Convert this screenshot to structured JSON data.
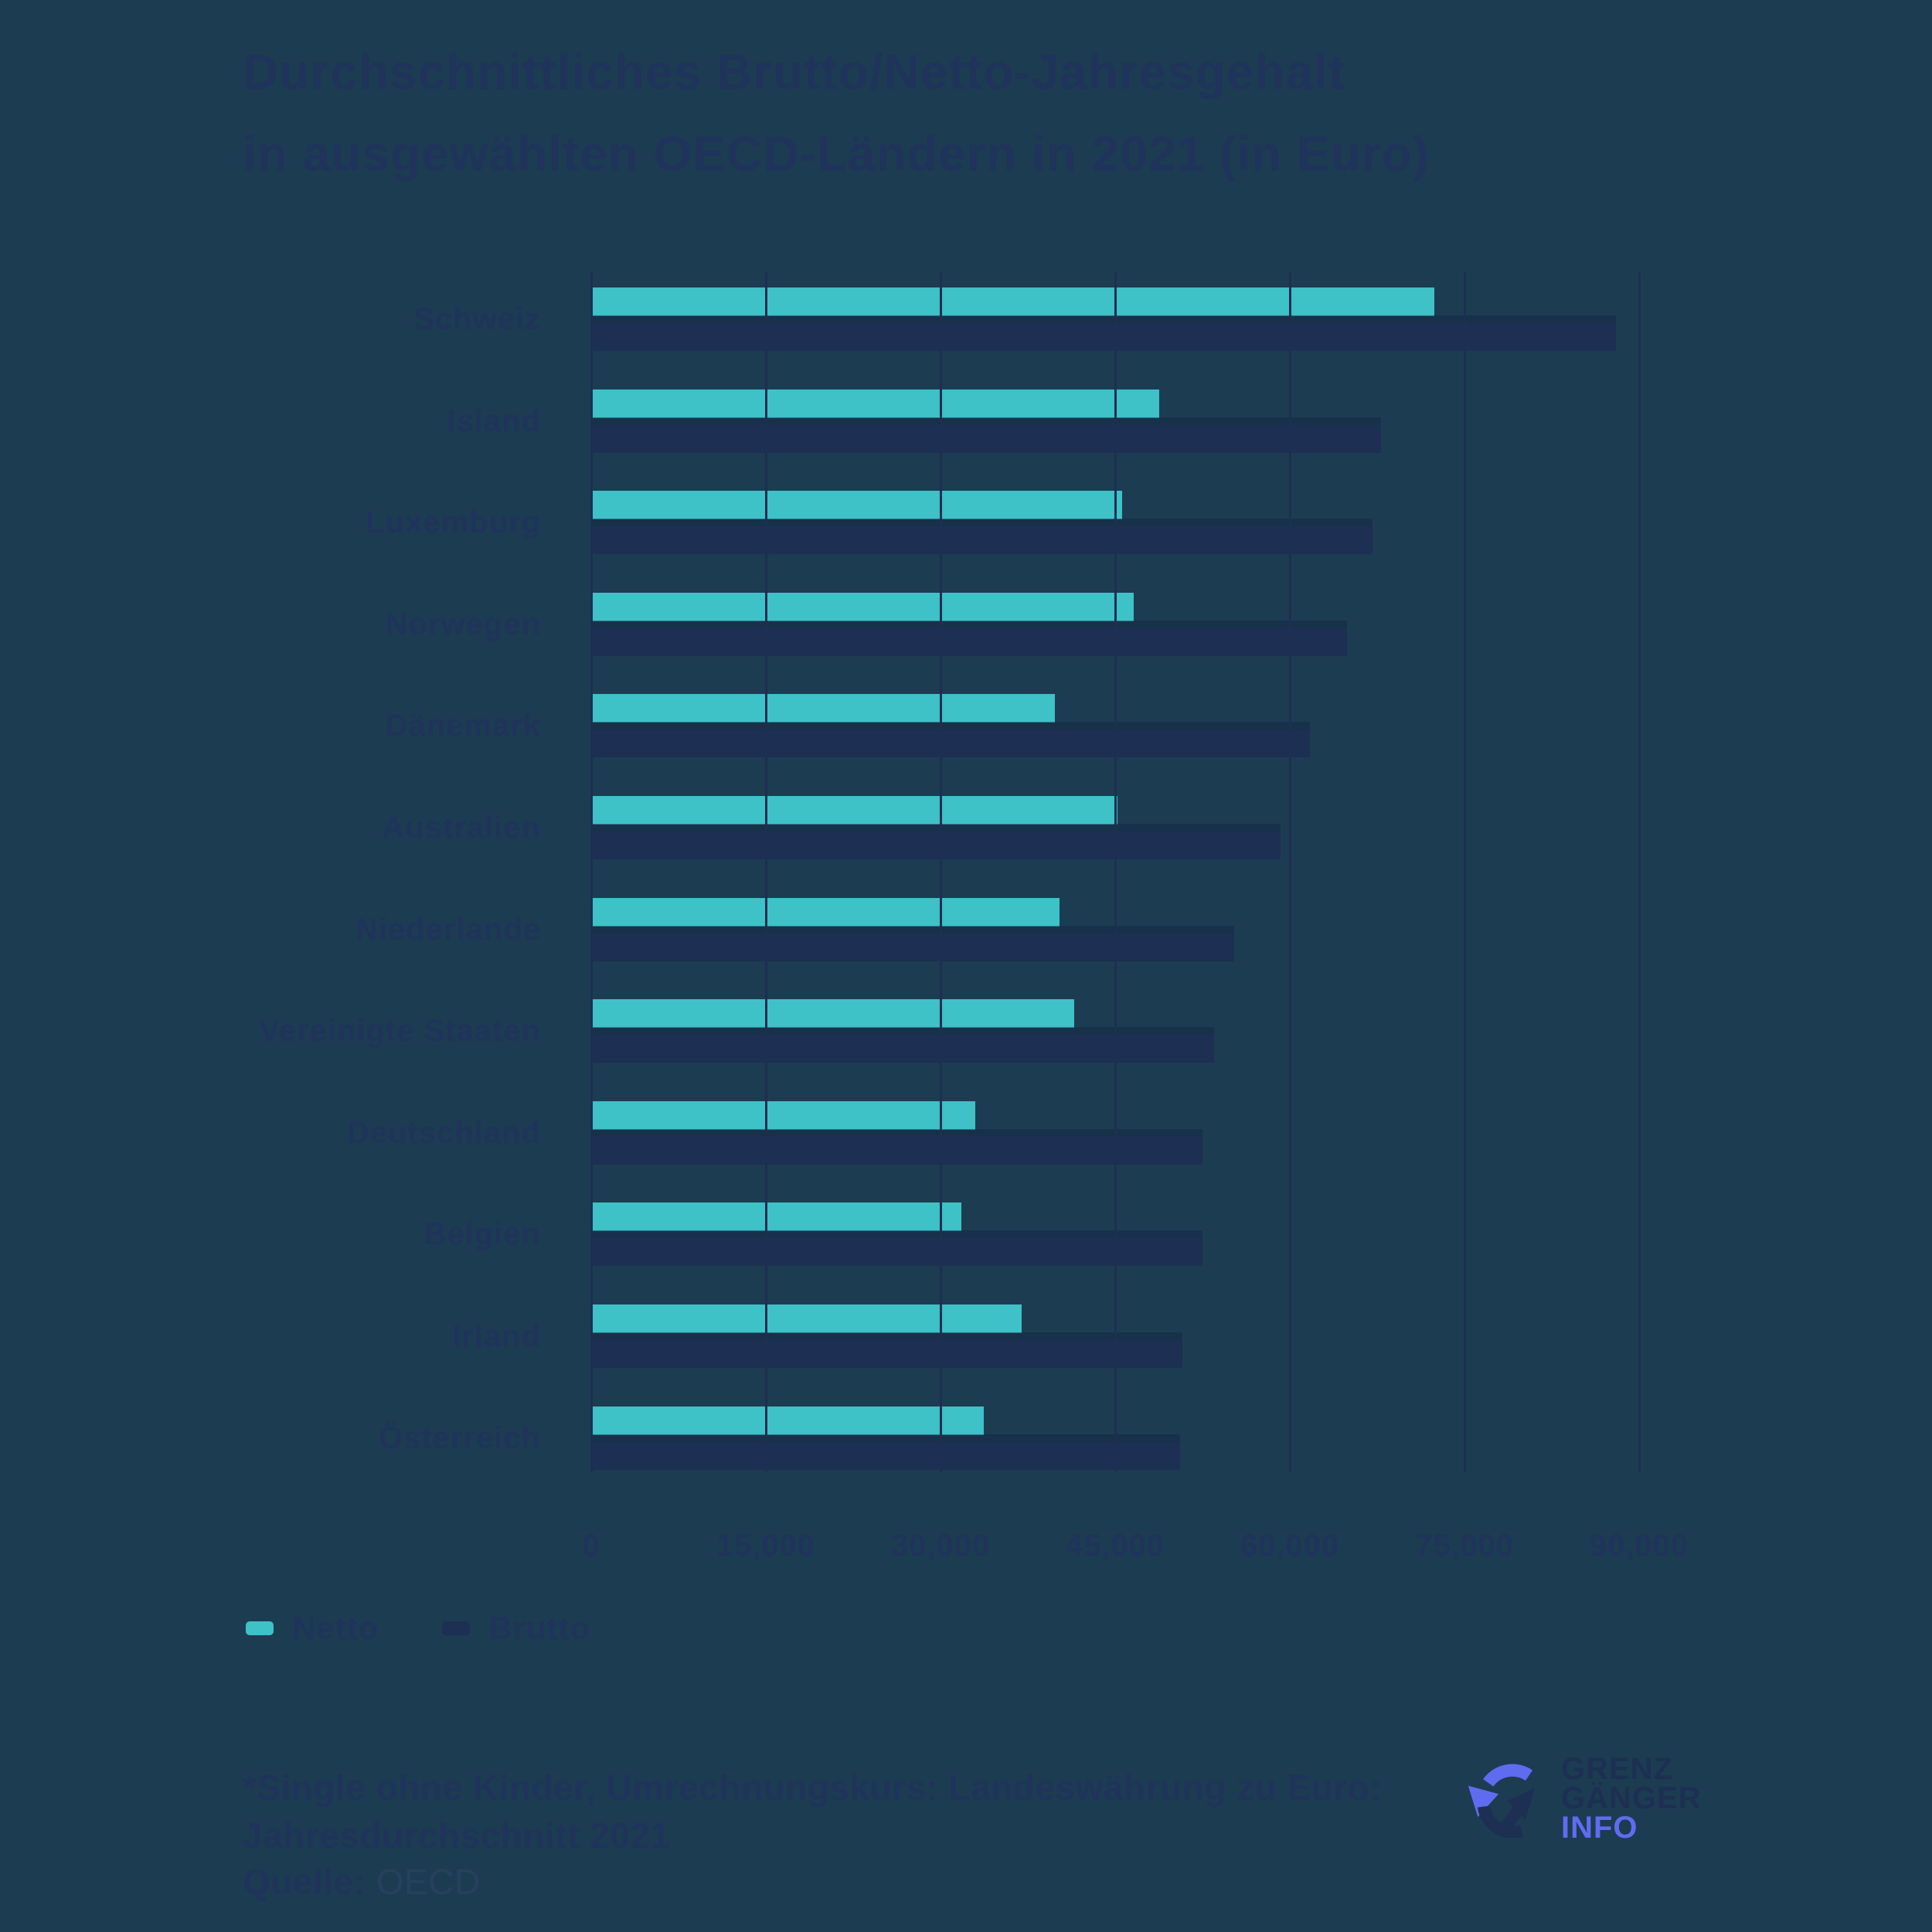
{
  "title": {
    "line1": "Durchschnittliches Brutto/Netto-Jahresgehalt",
    "line2": "in ausgewählten OECD-Ländern in 2021 (in Euro)"
  },
  "chart_data": {
    "type": "bar",
    "orientation": "horizontal",
    "title": "Durchschnittliches Brutto/Netto-Jahresgehalt in ausgewählten OECD-Ländern in 2021 (in Euro)",
    "unit": "Euro",
    "categories": [
      "Schweiz",
      "Island",
      "Luxemburg",
      "Norwegen",
      "Dänemark",
      "Australien",
      "Niederlande",
      "Vereinigte Staaten",
      "Deutschland",
      "Belgien",
      "Irland",
      "Österreich"
    ],
    "series": [
      {
        "name": "Netto",
        "color": "#3ec1c7",
        "values": [
          72400,
          48800,
          45600,
          46600,
          39800,
          45200,
          40200,
          41500,
          33000,
          31800,
          37000,
          33700
        ]
      },
      {
        "name": "Brutto",
        "color": "#1d2f52",
        "values": [
          88000,
          67800,
          67100,
          64900,
          61700,
          59200,
          55200,
          53500,
          52500,
          52500,
          50800,
          50600
        ]
      }
    ],
    "xlim": [
      0,
      90000
    ],
    "x_ticks": [
      0,
      15000,
      30000,
      45000,
      60000,
      75000,
      90000
    ],
    "x_tick_labels": [
      "0",
      "15,000",
      "30,000",
      "45,000",
      "60,000",
      "75,000",
      "90,000"
    ],
    "grid": true,
    "legend_position": "bottom-left"
  },
  "footnote": {
    "line1": "*Single ohne Kinder, Umrechnungskurs: Landeswährung zu Euro:",
    "line2": "Jahresdurchschnitt 2021"
  },
  "source": {
    "label": "Quelle:",
    "value": "OECD"
  },
  "logo": {
    "line1": "GRENZ",
    "line2": "GÄNGER",
    "line3": "INFO"
  },
  "colors": {
    "background": "#1c3c52",
    "netto": "#3ec1c7",
    "brutto": "#1d2f52",
    "text": "#20335a",
    "accent_purple": "#5f6cf0"
  }
}
